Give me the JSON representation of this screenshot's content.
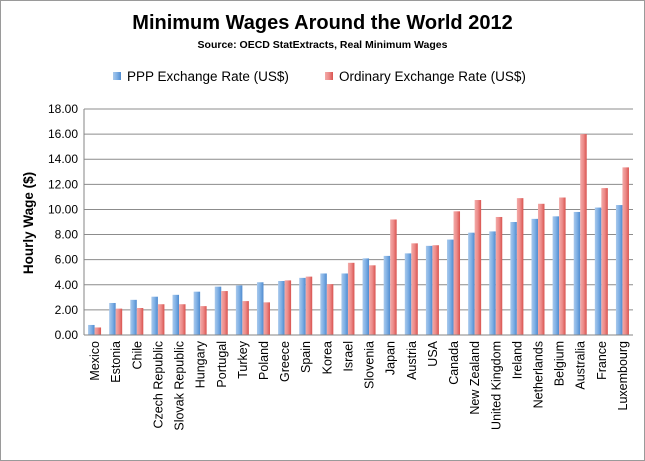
{
  "chart_data": {
    "type": "bar",
    "title": "Minimum Wages Around the World 2012",
    "subtitle": "Source: OECD StatExtracts, Real Minimum Wages",
    "ylabel": "Hourly Wage ($)",
    "xlabel": "",
    "ylim": [
      0,
      16
    ],
    "ytick_step": 2,
    "ytick_labels": [
      "0.00",
      "2.00",
      "4.00",
      "6.00",
      "8.00",
      "10.00",
      "12.00",
      "14.00",
      "16.00",
      "18.00"
    ],
    "grid": true,
    "legend": "top",
    "categories": [
      "Mexico",
      "Estonia",
      "Chile",
      "Czech Republic",
      "Slovak Republic",
      "Hungary",
      "Portugal",
      "Turkey",
      "Poland",
      "Greece",
      "Spain",
      "Korea",
      "Israel",
      "Slovenia",
      "Japan",
      "Austria",
      "USA",
      "Canada",
      "New Zealand",
      "United Kingdom",
      "Ireland",
      "Netherlands",
      "Belgium",
      "Australia",
      "France",
      "Luxembourg"
    ],
    "series": [
      {
        "name": "PPP Exchange Rate (US$)",
        "color": "#5b9bd5",
        "values": [
          0.8,
          2.55,
          2.8,
          3.05,
          3.2,
          3.45,
          3.85,
          3.95,
          4.2,
          4.3,
          4.55,
          4.9,
          4.9,
          6.1,
          6.3,
          6.5,
          7.1,
          7.6,
          8.15,
          8.25,
          9.0,
          9.25,
          9.45,
          9.8,
          10.15,
          10.35
        ]
      },
      {
        "name": "Ordinary Exchange Rate (US$)",
        "color": "#e06666",
        "values": [
          0.6,
          2.1,
          2.15,
          2.45,
          2.45,
          2.3,
          3.5,
          2.7,
          2.6,
          4.35,
          4.65,
          4.05,
          5.75,
          5.55,
          9.2,
          7.3,
          7.15,
          9.85,
          10.75,
          9.4,
          10.9,
          10.45,
          10.95,
          16.0,
          11.7,
          13.35
        ]
      }
    ]
  }
}
